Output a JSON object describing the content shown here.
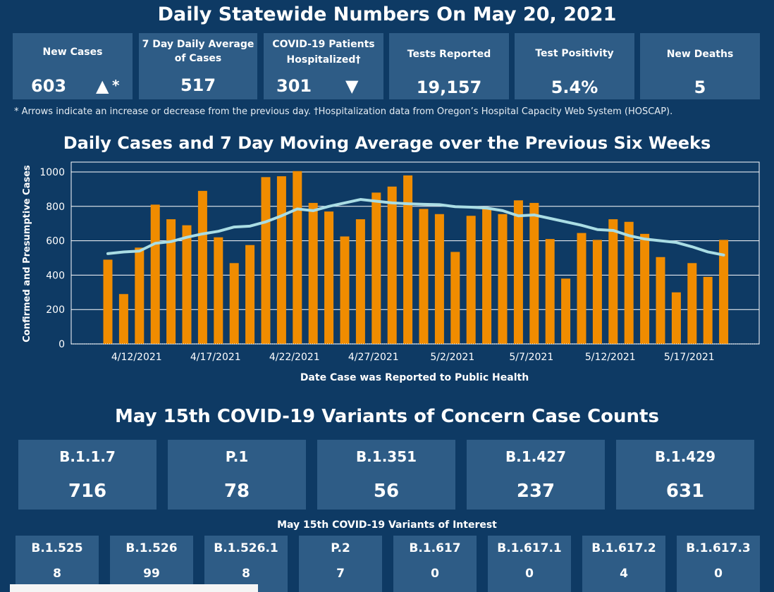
{
  "header": {
    "title": "Daily Statewide Numbers On May 20, 2021"
  },
  "stats": {
    "new_cases": {
      "label": "New Cases",
      "value": "603",
      "arrow": "▲",
      "mark": "*"
    },
    "avg_cases": {
      "label_line1": "7 Day Daily Average",
      "label_line2": "of Cases",
      "value": "517"
    },
    "hospitalized": {
      "label_line1": "COVID-19 Patients",
      "label_line2": "Hospitalized†",
      "value": "301",
      "arrow": "▼"
    },
    "tests": {
      "label": "Tests Reported",
      "value": "19,157"
    },
    "positivity": {
      "label": "Test Positivity",
      "value": "5.4%"
    },
    "deaths": {
      "label": "New Deaths",
      "value": "5"
    }
  },
  "footnote": "* Arrows indicate an increase or decrease from the previous day. †Hospitalization data from Oregon’s Hospital Capacity Web System (HOSCAP).",
  "chart_data": {
    "type": "bar",
    "title": "Daily Cases and 7 Day Moving Average over the Previous Six Weeks",
    "xlabel": "Date Case was Reported to Public Health",
    "ylabel": "Confirmed and Presumptive Cases",
    "ylim": [
      0,
      1050
    ],
    "yticks": [
      0,
      200,
      400,
      600,
      800,
      1000
    ],
    "xtick_labels": [
      "4/12/2021",
      "4/17/2021",
      "4/22/2021",
      "4/27/2021",
      "5/2/2021",
      "5/7/2021",
      "5/12/2021",
      "5/17/2021"
    ],
    "xtick_index": [
      2,
      7,
      12,
      17,
      22,
      27,
      32,
      37
    ],
    "grid": true,
    "bar_color": "#f08c00",
    "line_color": "#aadde4",
    "series": [
      {
        "type": "bar",
        "values": [
          490,
          290,
          560,
          810,
          725,
          690,
          890,
          620,
          470,
          575,
          970,
          975,
          1005,
          820,
          770,
          625,
          725,
          880,
          915,
          980,
          785,
          755,
          535,
          745,
          790,
          755,
          835,
          820,
          610,
          380,
          645,
          605,
          725,
          710,
          640,
          505,
          300,
          470,
          390,
          605
        ]
      },
      {
        "type": "line",
        "values": [
          525,
          535,
          540,
          585,
          595,
          620,
          640,
          655,
          680,
          685,
          710,
          745,
          785,
          775,
          800,
          820,
          840,
          830,
          820,
          815,
          812,
          810,
          798,
          795,
          790,
          775,
          745,
          750,
          730,
          710,
          690,
          665,
          660,
          630,
          610,
          600,
          590,
          565,
          535,
          517
        ]
      }
    ]
  },
  "variants_concern": {
    "title": "May 15th  COVID-19 Variants of Concern Case Counts",
    "items": [
      {
        "name": "B.1.1.7",
        "count": "716"
      },
      {
        "name": "P.1",
        "count": "78"
      },
      {
        "name": "B.1.351",
        "count": "56"
      },
      {
        "name": "B.1.427",
        "count": "237"
      },
      {
        "name": "B.1.429",
        "count": "631"
      }
    ]
  },
  "variants_interest": {
    "title": "May 15th COVID-19 Variants of Interest",
    "items": [
      {
        "name": "B.1.525",
        "count": "8"
      },
      {
        "name": "B.1.526",
        "count": "99"
      },
      {
        "name": "B.1.526.1",
        "count": "8"
      },
      {
        "name": "P.2",
        "count": "7"
      },
      {
        "name": "B.1.617",
        "count": "0"
      },
      {
        "name": "B.1.617.1",
        "count": "0"
      },
      {
        "name": "B.1.617.2",
        "count": "4"
      },
      {
        "name": "B.1.617.3",
        "count": "0"
      }
    ]
  }
}
